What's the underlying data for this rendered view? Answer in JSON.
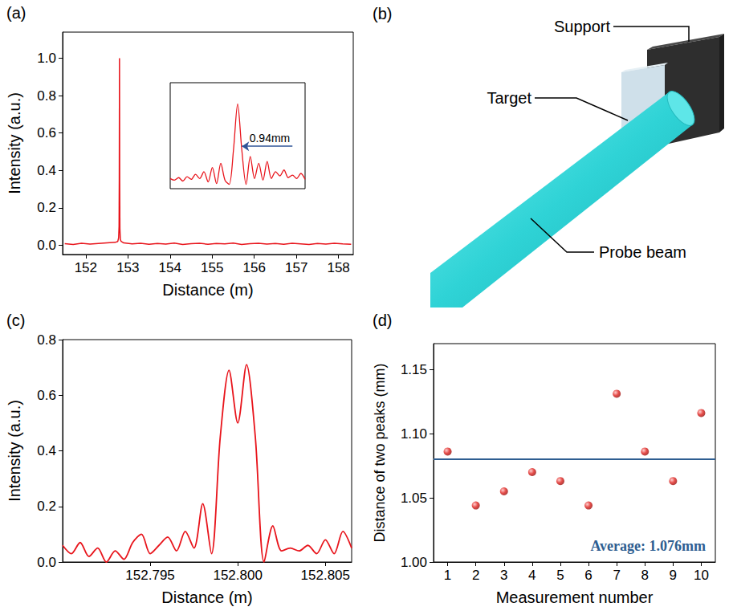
{
  "chart_data": [
    {
      "panel": "(a)",
      "type": "line",
      "x_label": "Distance (m)",
      "y_label": "Intensity (a.u.)",
      "color": "#e8141b",
      "grid": false,
      "x": [
        151.5,
        151.7,
        151.9,
        152.1,
        152.3,
        152.5,
        152.7,
        152.76,
        152.78,
        152.79,
        152.795,
        152.8,
        152.805,
        152.81,
        152.82,
        152.84,
        152.9,
        153.1,
        153.3,
        153.5,
        153.7,
        153.9,
        154.1,
        154.3,
        154.5,
        154.7,
        154.9,
        155.1,
        155.3,
        155.5,
        155.7,
        155.9,
        156.1,
        156.3,
        156.5,
        156.7,
        156.9,
        157.1,
        157.3,
        157.5,
        157.7,
        157.9,
        158.1,
        158.3
      ],
      "values": [
        0.008,
        0.004,
        0.01,
        0.006,
        0.009,
        0.012,
        0.015,
        0.02,
        0.04,
        0.1,
        0.35,
        1.0,
        0.33,
        0.09,
        0.03,
        0.02,
        0.012,
        0.007,
        0.01,
        0.005,
        0.009,
        0.006,
        0.011,
        0.004,
        0.008,
        0.01,
        0.005,
        0.009,
        0.007,
        0.011,
        0.004,
        0.008,
        0.01,
        0.006,
        0.009,
        0.005,
        0.01,
        0.007,
        0.004,
        0.009,
        0.006,
        0.01,
        0.007,
        0.005
      ],
      "xlim": [
        151.45,
        158.35
      ],
      "xticks": [
        152,
        153,
        154,
        155,
        156,
        157,
        158
      ],
      "ylim": [
        -0.05,
        1.14
      ],
      "yticks": [
        {
          "value": 0,
          "label": "0.0"
        },
        0.2,
        0.4,
        0.6,
        0.8,
        {
          "value": 1,
          "label": "1.0"
        }
      ],
      "inset": {
        "type": "line",
        "color": "#e8141b",
        "tick_labels": false,
        "x": [
          152.792,
          152.7925,
          152.793,
          152.7935,
          152.794,
          152.7945,
          152.795,
          152.7955,
          152.796,
          152.7965,
          152.797,
          152.7975,
          152.798,
          152.7985,
          152.799,
          152.7995,
          152.8,
          152.8005,
          152.801,
          152.8015,
          152.802,
          152.8025,
          152.803,
          152.8035,
          152.804,
          152.8045,
          152.805,
          152.8055,
          152.806,
          152.8065,
          152.807,
          152.8075,
          152.808
        ],
        "values": [
          0.12,
          0.1,
          0.13,
          0.09,
          0.14,
          0.11,
          0.17,
          0.12,
          0.2,
          0.08,
          0.25,
          0.06,
          0.3,
          0.1,
          0.05,
          0.45,
          1.0,
          0.45,
          0.05,
          0.38,
          0.12,
          0.3,
          0.1,
          0.32,
          0.12,
          0.2,
          0.15,
          0.22,
          0.13,
          0.16,
          0.12,
          0.18,
          0.11
        ],
        "xlim": [
          152.792,
          152.808
        ],
        "ylim": [
          0,
          1.25
        ],
        "annotation": {
          "text": "0.94mm",
          "x_from": 152.8065,
          "x_to": 152.8005,
          "y": 0.5,
          "color": "#2f5597"
        }
      }
    },
    {
      "panel": "(c)",
      "type": "line",
      "x_label": "Distance (m)",
      "y_label": "Intensity (a.u.)",
      "color": "#e8141b",
      "grid": false,
      "x": [
        152.79,
        152.7905,
        152.791,
        152.7915,
        152.792,
        152.7925,
        152.793,
        152.7935,
        152.794,
        152.7945,
        152.795,
        152.7955,
        152.796,
        152.7965,
        152.797,
        152.7975,
        152.798,
        152.7985,
        152.799,
        152.7995,
        152.8,
        152.8005,
        152.801,
        152.8015,
        152.802,
        152.8025,
        152.803,
        152.8035,
        152.804,
        152.8045,
        152.805,
        152.8055,
        152.806,
        152.8065
      ],
      "values": [
        0.06,
        0.03,
        0.07,
        0.02,
        0.05,
        0.0,
        0.04,
        0.01,
        0.07,
        0.1,
        0.03,
        0.06,
        0.09,
        0.04,
        0.11,
        0.05,
        0.21,
        0.03,
        0.45,
        0.69,
        0.5,
        0.71,
        0.45,
        0.0,
        0.13,
        0.04,
        0.05,
        0.04,
        0.06,
        0.03,
        0.08,
        0.03,
        0.11,
        0.05
      ],
      "xlim": [
        152.79,
        152.8065
      ],
      "xticks": [
        152.795,
        {
          "value": 152.8,
          "label": "152.800"
        },
        152.805
      ],
      "ylim": [
        0,
        0.8
      ],
      "yticks": [
        {
          "value": 0,
          "label": "0.0"
        },
        0.2,
        0.4,
        0.6,
        0.8
      ]
    },
    {
      "panel": "(d)",
      "type": "scatter",
      "x_label": "Measurement number",
      "y_label": "Distance of two peaks (mm)",
      "color": "#e0201c",
      "marker": "circle",
      "grid": false,
      "x": [
        1,
        2,
        3,
        4,
        5,
        6,
        7,
        8,
        9,
        10
      ],
      "values": [
        1.086,
        1.044,
        1.055,
        1.07,
        1.063,
        1.044,
        1.131,
        1.086,
        1.063,
        1.116
      ],
      "xlim": [
        0.5,
        10.5
      ],
      "xticks": [
        1,
        2,
        3,
        4,
        5,
        6,
        7,
        8,
        9,
        10
      ],
      "ylim": [
        1.0,
        1.17
      ],
      "yticks": [
        {
          "value": 1.0,
          "label": "1.00"
        },
        1.05,
        {
          "value": 1.1,
          "label": "1.10"
        },
        1.15
      ],
      "average": {
        "value": 1.076,
        "label": "Average: 1.076mm",
        "color": "#2e5e91"
      }
    }
  ],
  "diagram": {
    "panel": "(b)",
    "labels": {
      "support": "Support",
      "target": "Target",
      "probe_beam": "Probe beam"
    }
  }
}
